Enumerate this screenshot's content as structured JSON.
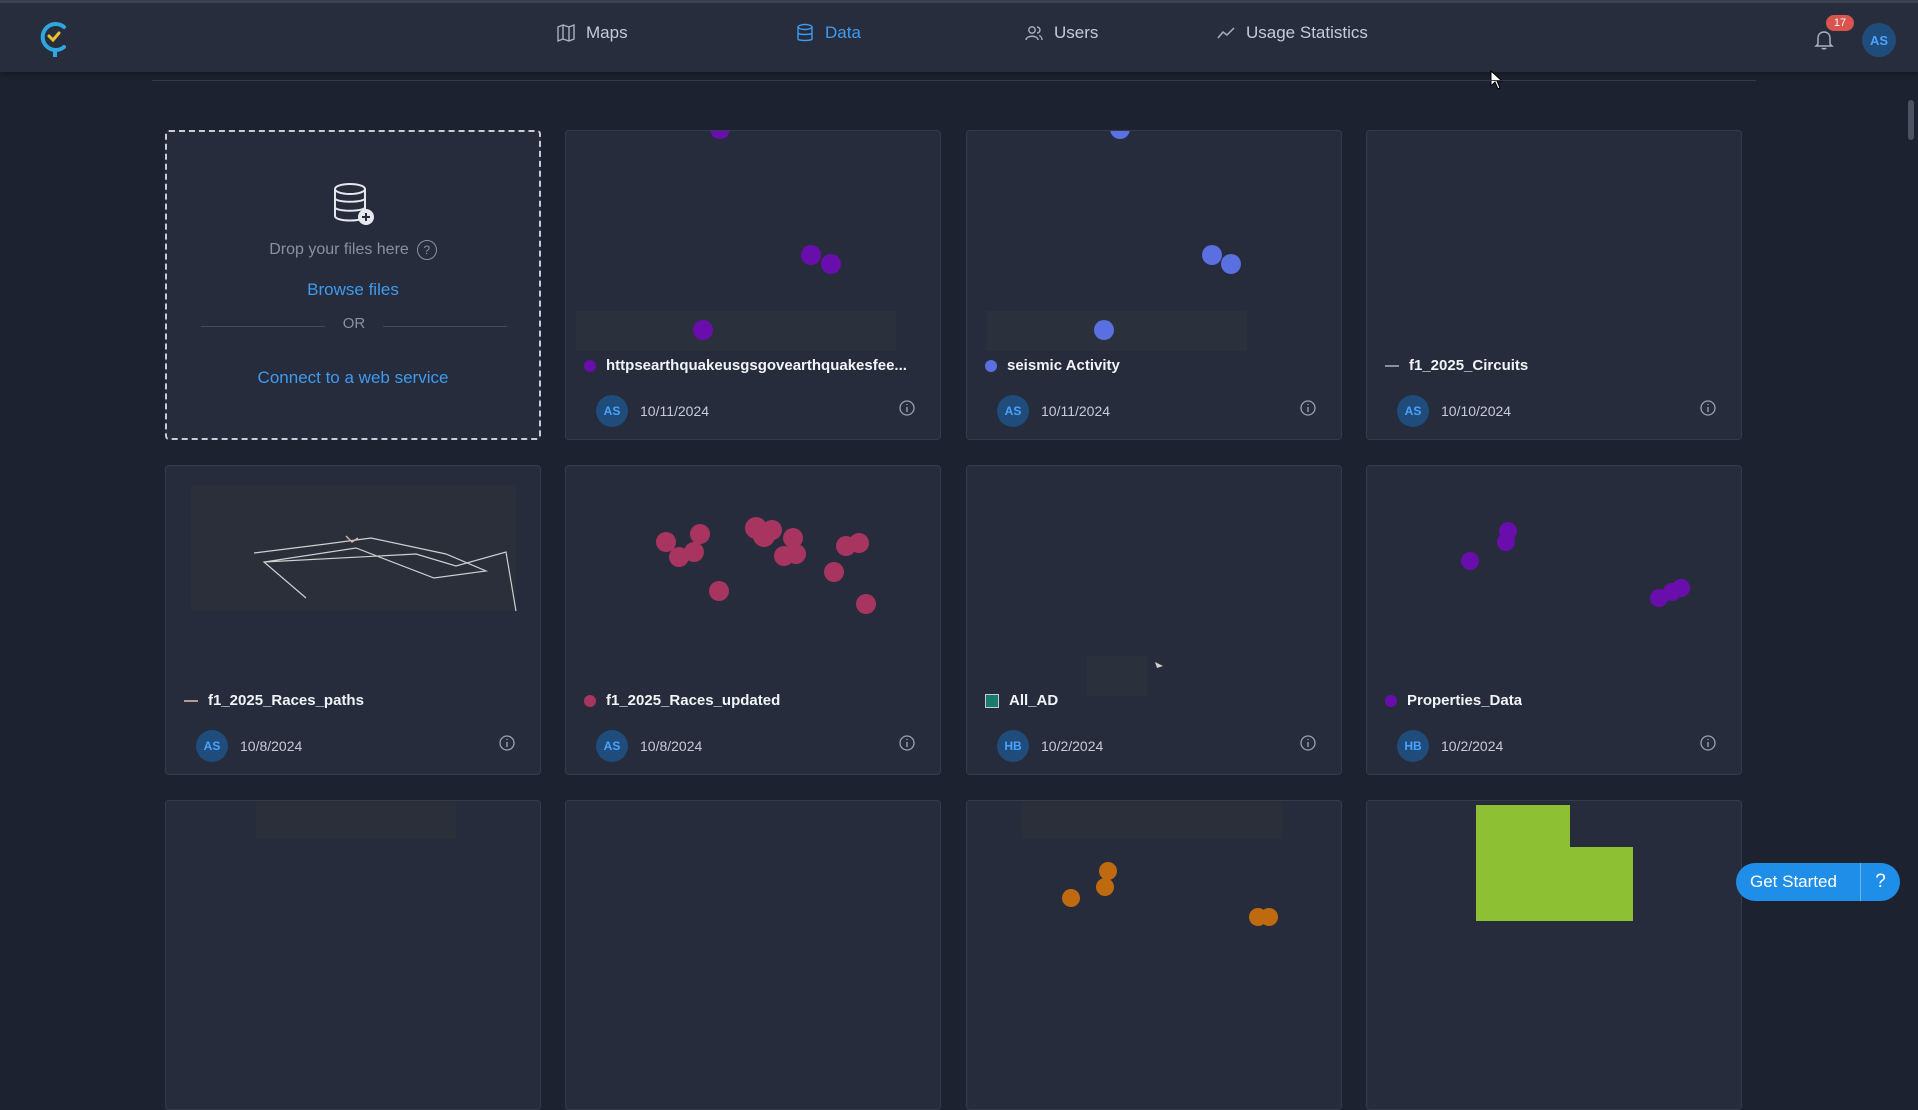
{
  "nav": {
    "items": [
      {
        "label": "Maps",
        "icon": "map-icon"
      },
      {
        "label": "Data",
        "icon": "database-icon",
        "active": true
      },
      {
        "label": "Users",
        "icon": "users-icon"
      },
      {
        "label": "Usage Statistics",
        "icon": "trend-icon"
      }
    ],
    "notifications": "17",
    "user_initials": "AS"
  },
  "upload": {
    "drop_text": "Drop your files here",
    "help": "?",
    "browse": "Browse files",
    "or": "OR",
    "connect": "Connect to a web service"
  },
  "cards": [
    {
      "title": "httpsearthquakeusgsgovearthquakesfee...",
      "initials": "AS",
      "date": "10/11/2024",
      "legend": "dot",
      "color": "#6a0dad"
    },
    {
      "title": "seismic Activity",
      "initials": "AS",
      "date": "10/11/2024",
      "legend": "dot",
      "color": "#5a6fe0"
    },
    {
      "title": "f1_2025_Circuits",
      "initials": "AS",
      "date": "10/10/2024",
      "legend": "dash",
      "color": "#8a8f9c"
    },
    {
      "title": "f1_2025_Races_paths",
      "initials": "AS",
      "date": "10/8/2024",
      "legend": "dash",
      "color": "#b69a8a"
    },
    {
      "title": "f1_2025_Races_updated",
      "initials": "AS",
      "date": "10/8/2024",
      "legend": "dot",
      "color": "#a8355f"
    },
    {
      "title": "All_AD",
      "initials": "HB",
      "date": "10/2/2024",
      "legend": "square",
      "color": "#1a7a6c"
    },
    {
      "title": "Properties_Data",
      "initials": "HB",
      "date": "10/2/2024",
      "legend": "dot",
      "color": "#6a0dad"
    }
  ],
  "get_started": {
    "label": "Get Started",
    "help": "?"
  }
}
